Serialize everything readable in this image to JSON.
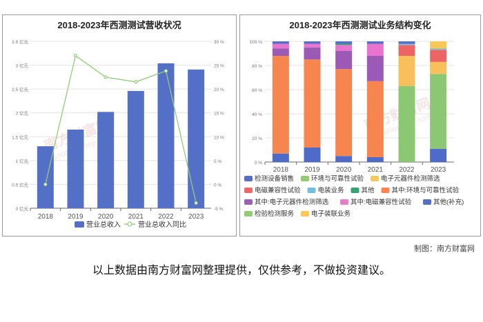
{
  "chart_data": [
    {
      "type": "bar",
      "title": "2018-2023年西测测试营收状况",
      "categories": [
        "2018",
        "2019",
        "2020",
        "2021",
        "2022",
        "2023"
      ],
      "series": [
        {
          "name": "营业总收入",
          "type": "bar",
          "axis": "left",
          "color": "#5470c6",
          "values": [
            1.3,
            1.65,
            2.02,
            2.46,
            3.04,
            2.91
          ]
        },
        {
          "name": "营业总收入同比",
          "type": "line",
          "axis": "right",
          "color": "#91cc75",
          "values": [
            0,
            27,
            22.5,
            21.5,
            23.8,
            -3.9
          ]
        }
      ],
      "left_axis": {
        "ylim": [
          0,
          3.5
        ],
        "ticks": [
          "0 亿元",
          "0.5 亿元",
          "1 亿元",
          "1.5 亿元",
          "2 亿元",
          "2.5 亿元",
          "3 亿元",
          "3.5 亿元"
        ]
      },
      "right_axis": {
        "ylim": [
          -5,
          30
        ],
        "ticks": [
          "-5 %",
          "0 %",
          "5 %",
          "10 %",
          "15 %",
          "20 %",
          "25 %",
          "30 %"
        ]
      },
      "grid": true,
      "legend": "bottom"
    },
    {
      "type": "bar",
      "stacked": true,
      "title": "2018-2023年西测测试业务结构变化",
      "categories": [
        "2018",
        "2019",
        "2020",
        "2021",
        "2022",
        "2023"
      ],
      "ylim": [
        0,
        100
      ],
      "yticks": [
        "0 %",
        "20 %",
        "40 %",
        "60 %",
        "80 %",
        "100 %"
      ],
      "series": [
        {
          "name": "其他(补充)",
          "color": "#4f6bc9",
          "values": [
            7,
            12,
            5,
            4,
            0,
            11
          ]
        },
        {
          "name": "检验检测服务",
          "color": "#8cc873",
          "values": [
            0,
            0,
            0,
            0,
            63,
            62
          ]
        },
        {
          "name": "电子装联业务",
          "color": "#f7c05a",
          "values": [
            0,
            0,
            0,
            0,
            25,
            10
          ]
        },
        {
          "name": "其中:环境与可靠性试验",
          "color": "#f6854f",
          "values": [
            81,
            73,
            72,
            63,
            0,
            0
          ]
        },
        {
          "name": "其中:电子元器件检测筛选",
          "color": "#9b5ab5",
          "values": [
            6,
            10,
            15,
            21,
            0,
            0
          ]
        },
        {
          "name": "其中:电磁兼容性试验",
          "color": "#e874cf",
          "values": [
            4,
            3,
            5,
            10,
            0,
            0
          ]
        },
        {
          "name": "电磁兼容性试验",
          "color": "#ec6463",
          "values": [
            0,
            0,
            0,
            0,
            9,
            10
          ]
        },
        {
          "name": "电装业务",
          "color": "#73c0de",
          "values": [
            0,
            0,
            0,
            0,
            1,
            1
          ]
        },
        {
          "name": "其他",
          "color": "#3ba272",
          "values": [
            0,
            0,
            1,
            0,
            0,
            0
          ]
        },
        {
          "name": "环境与可靠性试验",
          "color": "#91cc75",
          "values": [
            0,
            0,
            0,
            0,
            0,
            0
          ]
        },
        {
          "name": "电子元器件检测筛选",
          "color": "#fac858",
          "values": [
            0,
            0,
            0,
            0,
            0,
            6
          ]
        },
        {
          "name": "检测设备销售",
          "color": "#5470c6",
          "values": [
            2,
            2,
            2,
            2,
            2,
            0
          ]
        }
      ],
      "legend": "bottom"
    }
  ],
  "legend_right": [
    [
      {
        "name": "检测设备销售",
        "color": "#5470c6"
      },
      {
        "name": "环境与可靠性试验",
        "color": "#91cc75"
      },
      {
        "name": "电子元器件检测筛选",
        "color": "#fac858"
      }
    ],
    [
      {
        "name": "电磁兼容性试验",
        "color": "#ee6666"
      },
      {
        "name": "电装业务",
        "color": "#73c0de"
      },
      {
        "name": "其他",
        "color": "#3ba272"
      },
      {
        "name": "其中:环境与可靠性试验",
        "color": "#fc8452"
      }
    ],
    [
      {
        "name": "其中:电子元器件检测筛选",
        "color": "#9a60b4"
      },
      {
        "name": "其中:电磁兼容性试验",
        "color": "#ea7ccc"
      },
      {
        "name": "其他(补充)",
        "color": "#5470c6"
      }
    ],
    [
      {
        "name": "检验检测服务",
        "color": "#91cc75"
      },
      {
        "name": "电子装联业务",
        "color": "#fac858"
      }
    ]
  ],
  "watermark": {
    "brand": "南方财富网",
    "url": "Southmoney.com"
  },
  "credit": "制图：南方财富网",
  "disclaimer": "以上数据由南方财富网整理提供，仅供参考，不做投资建议。"
}
